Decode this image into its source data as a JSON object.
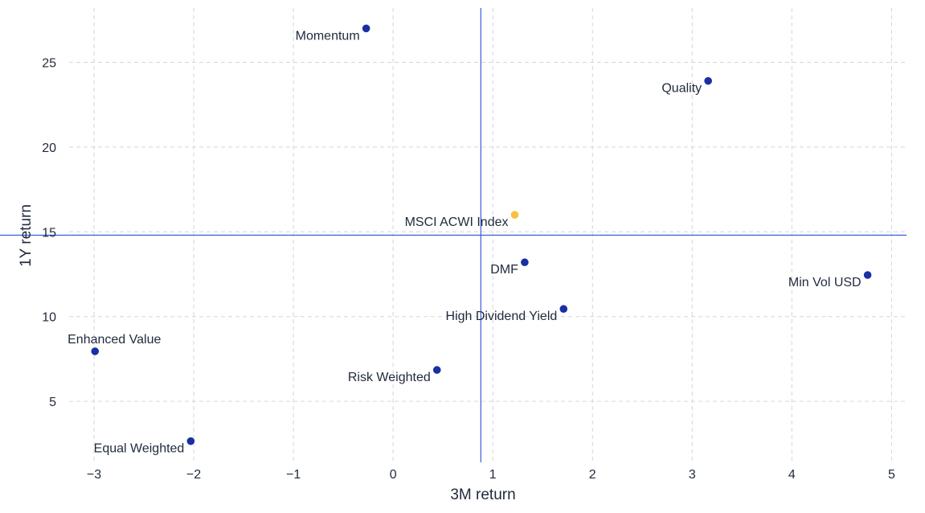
{
  "chart_data": {
    "type": "scatter",
    "title": "",
    "xlabel": "3M return",
    "ylabel": "1Y return",
    "xlim": [
      -3.25,
      5.15
    ],
    "ylim": [
      1.4,
      28.2
    ],
    "x_ticks": [
      -3,
      -2,
      -1,
      0,
      1,
      2,
      3,
      4,
      5
    ],
    "x_tick_labels": [
      "−3",
      "−2",
      "−1",
      "0",
      "1",
      "2",
      "3",
      "4",
      "5"
    ],
    "y_ticks": [
      5,
      10,
      15,
      20,
      25
    ],
    "y_tick_labels": [
      "5",
      "10",
      "15",
      "20",
      "25"
    ],
    "grid": true,
    "reference_lines": {
      "x": 0.88,
      "y": 14.8
    },
    "colors": {
      "point": "#1a2fa3",
      "highlight": "#f6c23e",
      "reference": "#3a5bd9",
      "grid": "#d6d6d6",
      "text": "#1f2a3c"
    },
    "points": [
      {
        "label": "Momentum",
        "x": -0.27,
        "y": 27.0,
        "label_anchor": "left",
        "highlight": false
      },
      {
        "label": "Quality",
        "x": 3.16,
        "y": 23.9,
        "label_anchor": "left",
        "highlight": false
      },
      {
        "label": "MSCI ACWI Index",
        "x": 1.22,
        "y": 16.0,
        "label_anchor": "left",
        "highlight": true
      },
      {
        "label": "DMF",
        "x": 1.32,
        "y": 13.2,
        "label_anchor": "left",
        "highlight": false
      },
      {
        "label": "Min Vol USD",
        "x": 4.76,
        "y": 12.45,
        "label_anchor": "left",
        "highlight": false
      },
      {
        "label": "High Dividend Yield",
        "x": 1.71,
        "y": 10.45,
        "label_anchor": "left",
        "highlight": false
      },
      {
        "label": "Enhanced Value",
        "x": -2.99,
        "y": 7.95,
        "label_anchor": "above",
        "highlight": false
      },
      {
        "label": "Risk Weighted",
        "x": 0.44,
        "y": 6.85,
        "label_anchor": "left",
        "highlight": false
      },
      {
        "label": "Equal Weighted",
        "x": -2.03,
        "y": 2.65,
        "label_anchor": "left",
        "highlight": false
      }
    ]
  }
}
